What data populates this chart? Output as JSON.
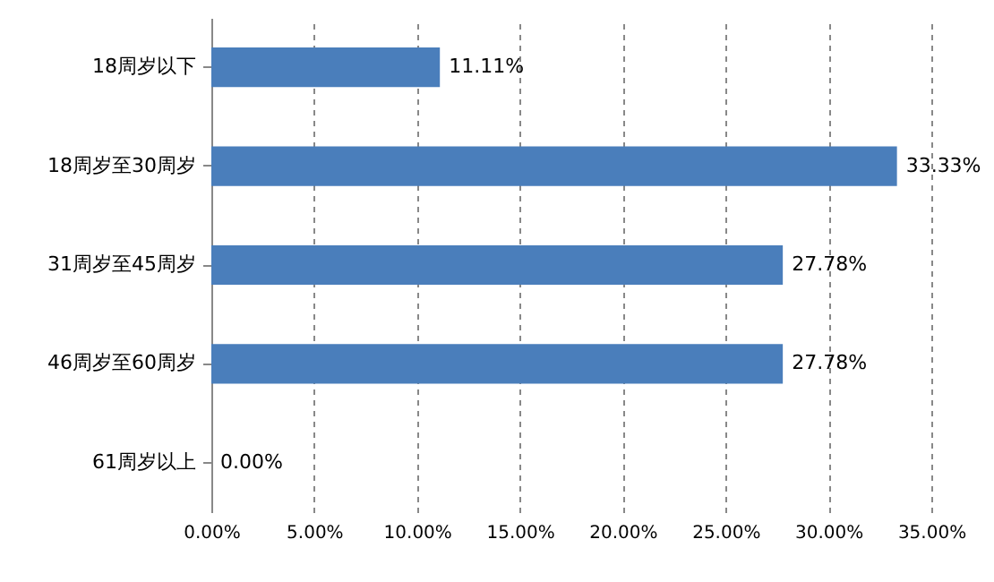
{
  "chart_data": {
    "type": "bar",
    "orientation": "horizontal",
    "categories": [
      "18周岁以下",
      "18周岁至30周岁",
      "31周岁至45周岁",
      "46周岁至60周岁",
      "61周岁以上"
    ],
    "values": [
      11.11,
      33.33,
      27.78,
      27.78,
      0
    ],
    "value_labels": [
      "11.11%",
      "33.33%",
      "27.78%",
      "27.78%",
      "0.00%"
    ],
    "color": "#4a7ebb",
    "xlim": [
      0,
      35
    ],
    "xticks": [
      {
        "value": 0,
        "label": "0.00%"
      },
      {
        "value": 5,
        "label": "5.00%"
      },
      {
        "value": 10,
        "label": "10.00%"
      },
      {
        "value": 15,
        "label": "15.00%"
      },
      {
        "value": 20,
        "label": "20.00%"
      },
      {
        "value": 25,
        "label": "25.00%"
      },
      {
        "value": 30,
        "label": "30.00%"
      },
      {
        "value": 35,
        "label": "35.00%"
      }
    ],
    "grid": "x"
  }
}
